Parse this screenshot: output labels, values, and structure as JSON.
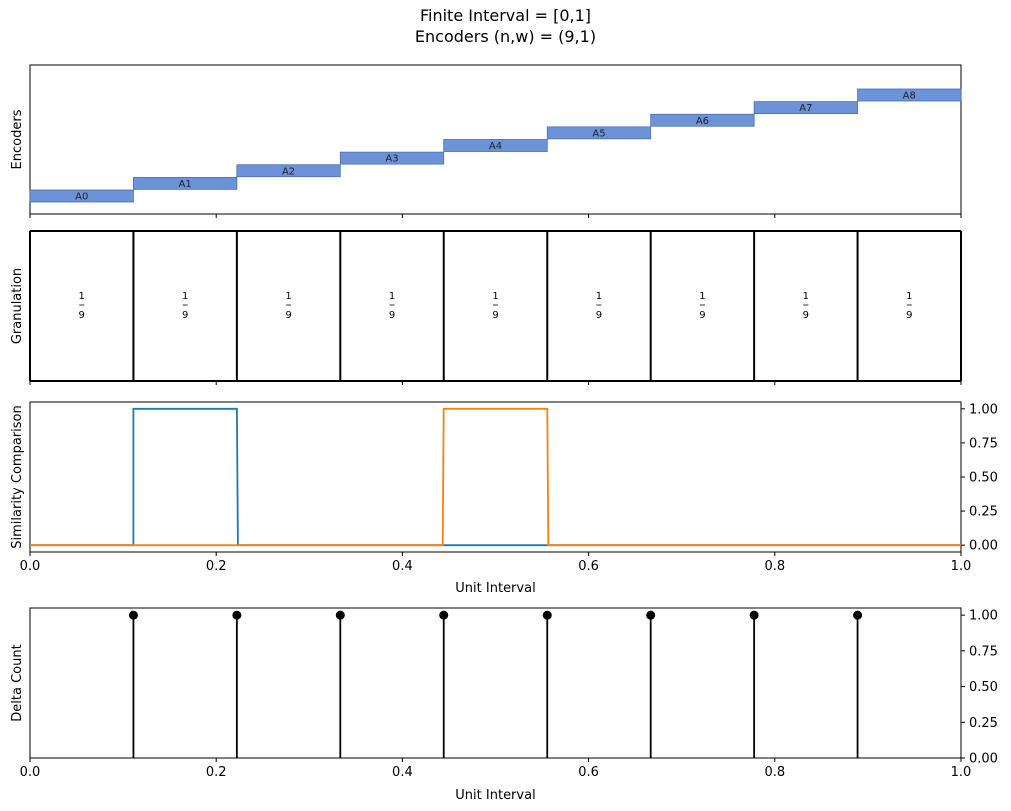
{
  "figure": {
    "title_line1": "Finite Interval = [0,1]",
    "title_line2": "Encoders (n,w) = (9,1)"
  },
  "colors": {
    "encoder_fill": "#6c93d8",
    "encoder_edge": "#4a6fb0",
    "series_blue": "#1f77b4",
    "series_orange": "#ff7f0e",
    "stem": "#000000"
  },
  "chart_data": [
    {
      "type": "bar",
      "panel": "encoders",
      "ylabel": "Encoders",
      "xlim": [
        0,
        1
      ],
      "bars": [
        {
          "label": "A0",
          "x0": 0.0,
          "x1": 0.1111
        },
        {
          "label": "A1",
          "x0": 0.1111,
          "x1": 0.2222
        },
        {
          "label": "A2",
          "x0": 0.2222,
          "x1": 0.3333
        },
        {
          "label": "A3",
          "x0": 0.3333,
          "x1": 0.4444
        },
        {
          "label": "A4",
          "x0": 0.4444,
          "x1": 0.5556
        },
        {
          "label": "A5",
          "x0": 0.5556,
          "x1": 0.6667
        },
        {
          "label": "A6",
          "x0": 0.6667,
          "x1": 0.7778
        },
        {
          "label": "A7",
          "x0": 0.7778,
          "x1": 0.8889
        },
        {
          "label": "A8",
          "x0": 0.8889,
          "x1": 1.0
        }
      ]
    },
    {
      "type": "bar",
      "panel": "granulation",
      "ylabel": "Granulation",
      "xlim": [
        0,
        1
      ],
      "boundaries": [
        0,
        0.1111,
        0.2222,
        0.3333,
        0.4444,
        0.5556,
        0.6667,
        0.7778,
        0.8889,
        1.0
      ],
      "cells": [
        {
          "num": "1",
          "den": "9"
        },
        {
          "num": "1",
          "den": "9"
        },
        {
          "num": "1",
          "den": "9"
        },
        {
          "num": "1",
          "den": "9"
        },
        {
          "num": "1",
          "den": "9"
        },
        {
          "num": "1",
          "den": "9"
        },
        {
          "num": "1",
          "den": "9"
        },
        {
          "num": "1",
          "den": "9"
        },
        {
          "num": "1",
          "den": "9"
        }
      ]
    },
    {
      "type": "line",
      "panel": "similarity",
      "ylabel": "Similarity Comparison",
      "xlabel": "Unit Interval",
      "xlim": [
        0,
        1
      ],
      "ylim": [
        -0.05,
        1.05
      ],
      "xticks": [
        "0.0",
        "0.2",
        "0.4",
        "0.6",
        "0.8",
        "1.0"
      ],
      "yticks": [
        "0.00",
        "0.25",
        "0.50",
        "0.75",
        "1.00"
      ],
      "series": [
        {
          "color_key": "series_blue",
          "x": [
            0,
            0.1111,
            0.1111,
            0.2222,
            0.2233,
            1.0
          ],
          "y": [
            0,
            0,
            1,
            1,
            0,
            0
          ]
        },
        {
          "color_key": "series_orange",
          "x": [
            0,
            0.4433,
            0.4444,
            0.5556,
            0.5567,
            1.0
          ],
          "y": [
            0,
            0,
            1,
            1,
            0,
            0
          ]
        }
      ]
    },
    {
      "type": "scatter",
      "panel": "delta",
      "ylabel": "Delta Count",
      "xlabel": "Unit Interval",
      "xlim": [
        0,
        1
      ],
      "ylim": [
        0,
        1.05
      ],
      "xticks": [
        "0.0",
        "0.2",
        "0.4",
        "0.6",
        "0.8",
        "1.0"
      ],
      "yticks": [
        "0.00",
        "0.25",
        "0.50",
        "0.75",
        "1.00"
      ],
      "stems": {
        "x": [
          0.1111,
          0.2222,
          0.3333,
          0.4444,
          0.5556,
          0.6667,
          0.7778,
          0.8889
        ],
        "y": [
          1,
          1,
          1,
          1,
          1,
          1,
          1,
          1
        ]
      }
    }
  ]
}
